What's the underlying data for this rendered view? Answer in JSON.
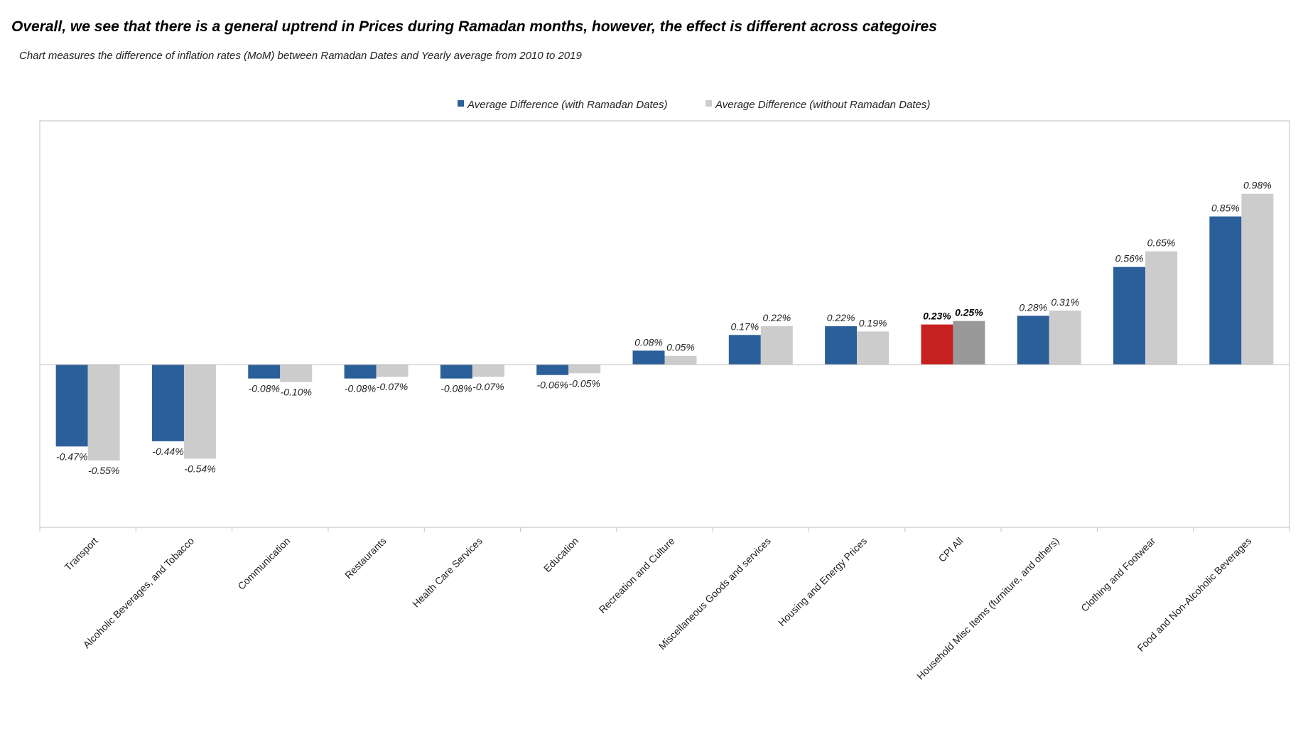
{
  "header": {
    "headline": "Overall, we see that there is a general uptrend in Prices during Ramadan months, however, the effect is different across categoires",
    "subtitle": "Chart measures the difference of inflation rates (MoM) between Ramadan Dates and Yearly average from 2010 to 2019"
  },
  "chart_data": {
    "type": "bar",
    "title": "",
    "xlabel": "",
    "ylabel": "",
    "ylim": [
      -0.8,
      1.15
    ],
    "grid": false,
    "legend_position": "top-center",
    "unit": "%",
    "categories": [
      "Transport",
      "Alcoholic Beverages, and Tobacco",
      "Communication",
      "Restaurants",
      "Health Care Services",
      "Education",
      "Recreation and Culture",
      "Miscellaneous Goods and services",
      "Housing and Energy Prices",
      "CPI All",
      "Household Misc Items (furniture, and others)",
      "Clothing and Footwear",
      "Food and Non-Alcoholic Beverages"
    ],
    "series": [
      {
        "name": "Average Difference (with Ramadan Dates)",
        "color": "#2b5f9a",
        "values": [
          -0.47,
          -0.44,
          -0.08,
          -0.08,
          -0.08,
          -0.06,
          0.08,
          0.17,
          0.22,
          0.23,
          0.28,
          0.56,
          0.85
        ],
        "labels": [
          "-0.47%",
          "-0.44%",
          "-0.08%",
          "-0.08%",
          "-0.08%",
          "-0.06%",
          "0.08%",
          "0.17%",
          "0.22%",
          "0.23%",
          "0.28%",
          "0.56%",
          "0.85%"
        ]
      },
      {
        "name": "Average Difference (without Ramadan Dates)",
        "color": "#cccccc",
        "values": [
          -0.55,
          -0.54,
          -0.1,
          -0.07,
          -0.07,
          -0.05,
          0.05,
          0.22,
          0.19,
          0.25,
          0.31,
          0.65,
          0.98
        ],
        "labels": [
          "-0.55%",
          "-0.54%",
          "-0.10%",
          "-0.07%",
          "-0.07%",
          "-0.05%",
          "0.05%",
          "0.22%",
          "0.19%",
          "0.25%",
          "0.31%",
          "0.65%",
          "0.98%"
        ]
      }
    ],
    "highlight": {
      "category": "CPI All",
      "colors": [
        "#c62020",
        "#999999"
      ]
    }
  }
}
